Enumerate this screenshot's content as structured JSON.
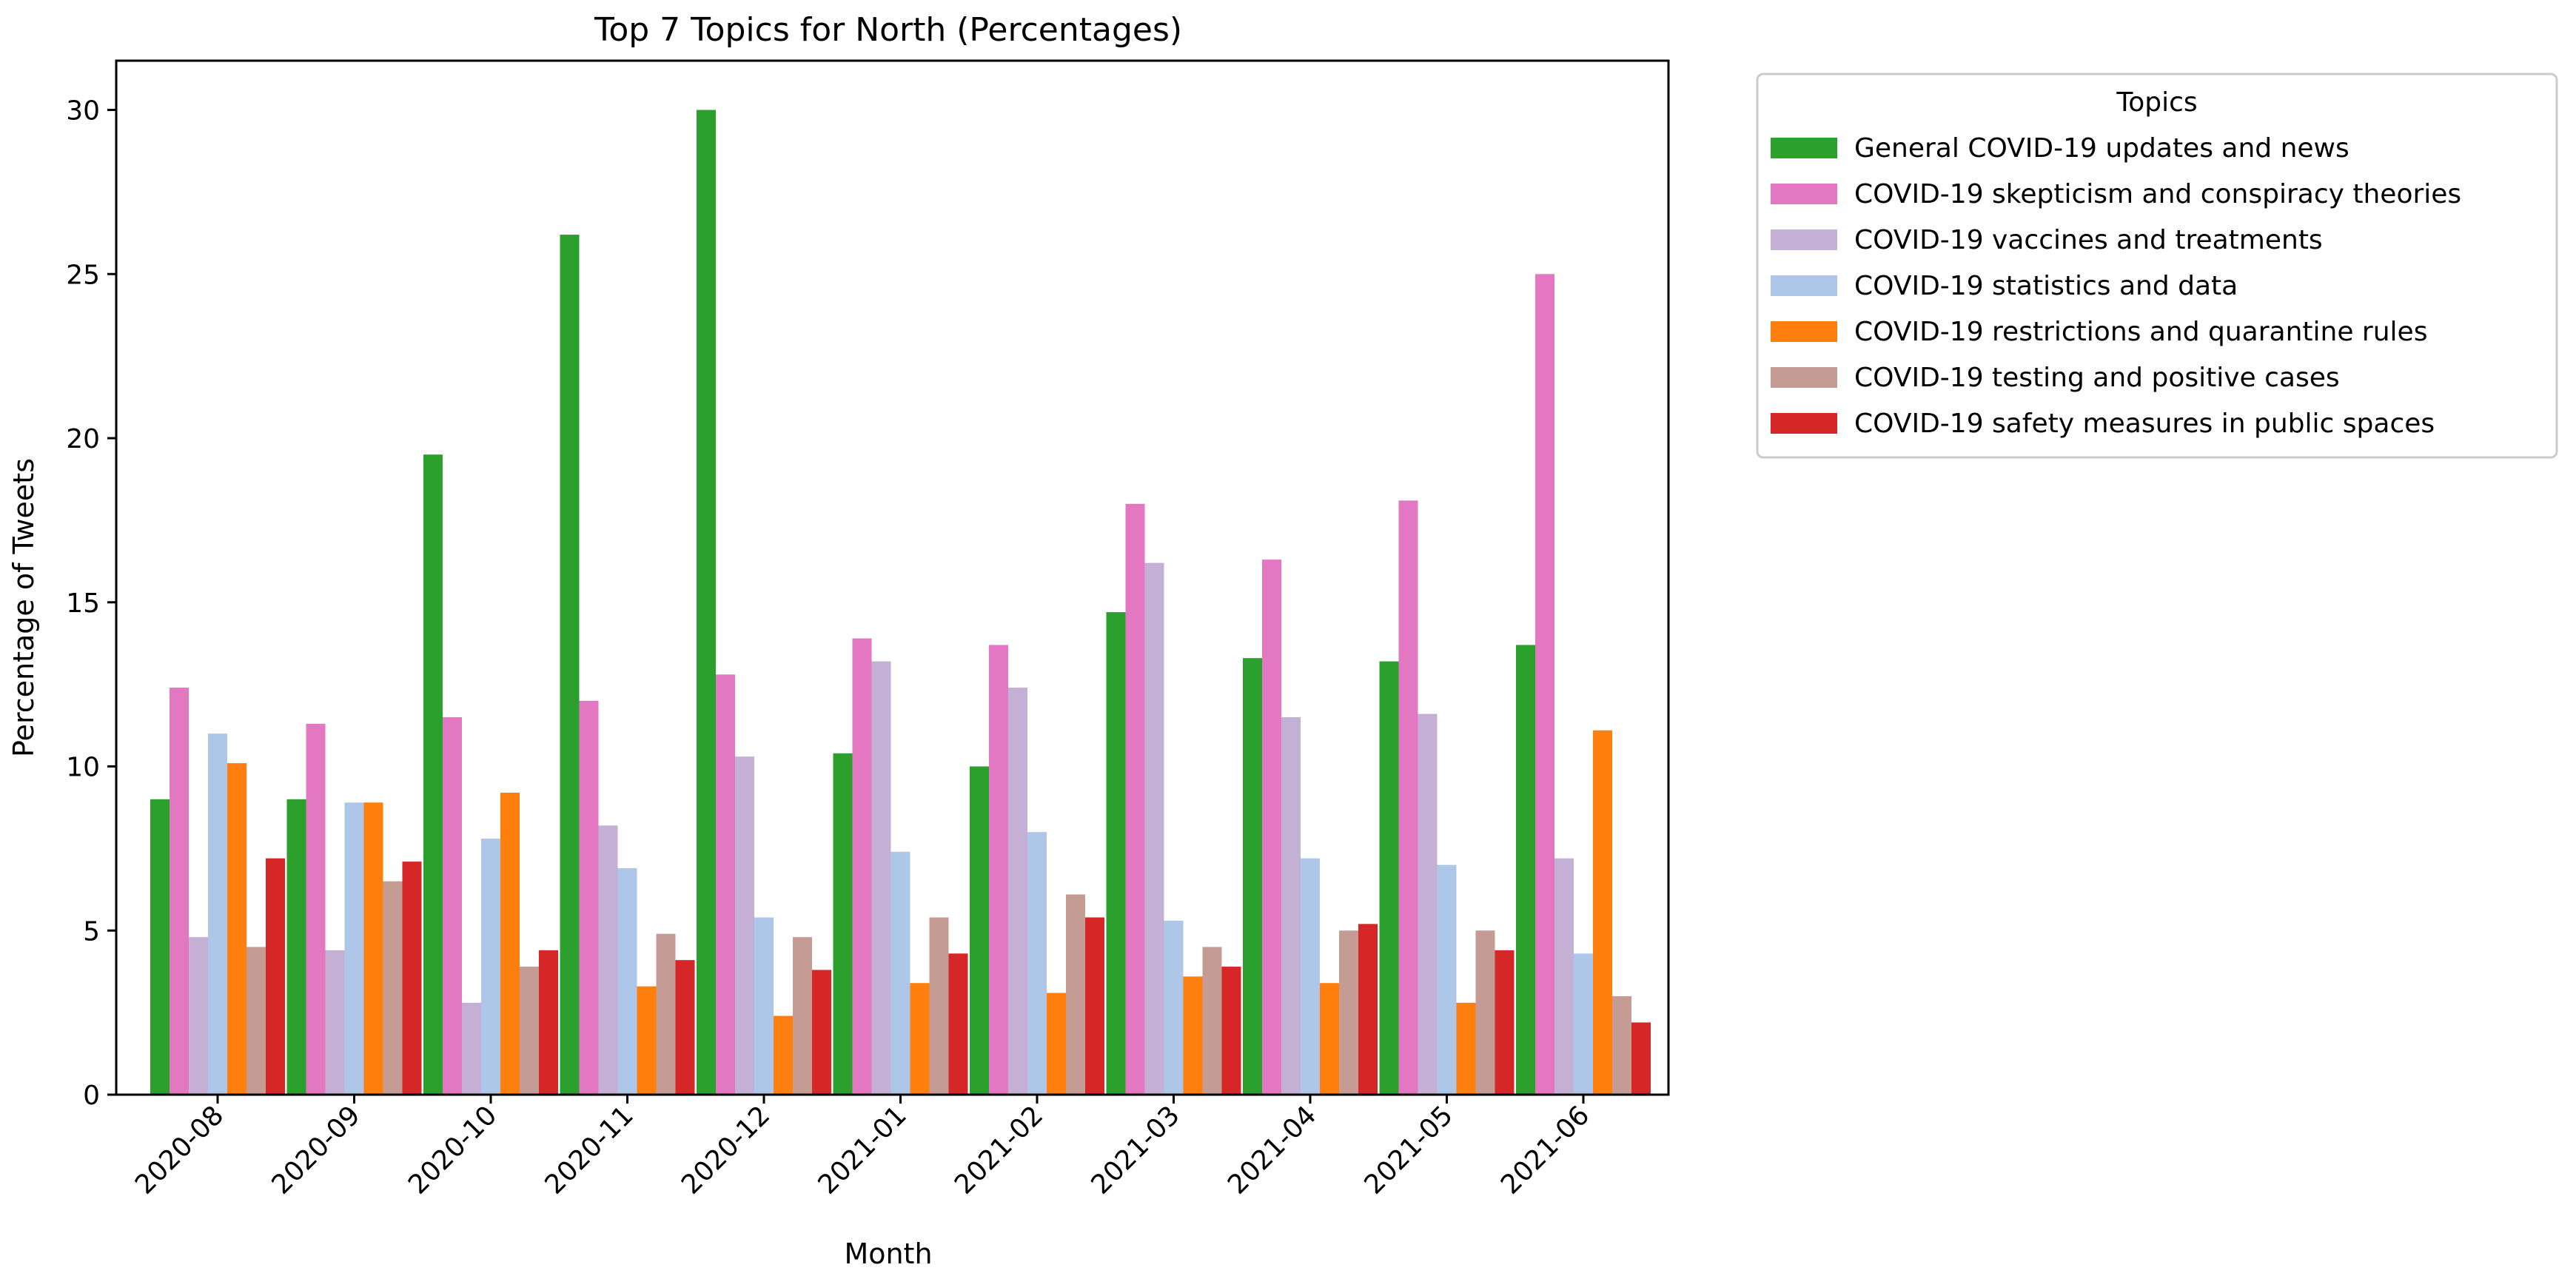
{
  "chart_data": {
    "type": "bar",
    "title": "Top 7 Topics for North (Percentages)",
    "xlabel": "Month",
    "ylabel": "Percentage of Tweets",
    "ylim": [
      0,
      31.5
    ],
    "yticks": [
      0,
      5,
      10,
      15,
      20,
      25,
      30
    ],
    "grid": false,
    "legend": {
      "title": "Topics",
      "placement": "outside-upper-right"
    },
    "categories": [
      "2020-08",
      "2020-09",
      "2020-10",
      "2020-11",
      "2020-12",
      "2021-01",
      "2021-02",
      "2021-03",
      "2021-04",
      "2021-05",
      "2021-06"
    ],
    "series": [
      {
        "name": "General COVID-19 updates and news",
        "color": "#2ca02c",
        "values": [
          9.0,
          9.0,
          19.5,
          26.2,
          30.0,
          10.4,
          10.0,
          14.7,
          13.3,
          13.2,
          13.7
        ]
      },
      {
        "name": "COVID-19 skepticism and conspiracy theories",
        "color": "#e377c2",
        "values": [
          12.4,
          11.3,
          11.5,
          12.0,
          12.8,
          13.9,
          13.7,
          18.0,
          16.3,
          18.1,
          25.0
        ]
      },
      {
        "name": "COVID-19 vaccines and treatments",
        "color": "#c5b0d5",
        "values": [
          4.8,
          4.4,
          2.8,
          8.2,
          10.3,
          13.2,
          12.4,
          16.2,
          11.5,
          11.6,
          7.2
        ]
      },
      {
        "name": "COVID-19 statistics and data",
        "color": "#aec7e8",
        "values": [
          11.0,
          8.9,
          7.8,
          6.9,
          5.4,
          7.4,
          8.0,
          5.3,
          7.2,
          7.0,
          4.3
        ]
      },
      {
        "name": "COVID-19 restrictions and quarantine rules",
        "color": "#ff7f0e",
        "values": [
          10.1,
          8.9,
          9.2,
          3.3,
          2.4,
          3.4,
          3.1,
          3.6,
          3.4,
          2.8,
          11.1
        ]
      },
      {
        "name": "COVID-19 testing and positive cases",
        "color": "#c49c94",
        "values": [
          4.5,
          6.5,
          3.9,
          4.9,
          4.8,
          5.4,
          6.1,
          4.5,
          5.0,
          5.0,
          3.0
        ]
      },
      {
        "name": "COVID-19 safety measures in public spaces",
        "color": "#d62728",
        "values": [
          7.2,
          7.1,
          4.4,
          4.1,
          3.8,
          4.3,
          5.4,
          3.9,
          5.2,
          4.4,
          2.2
        ]
      }
    ]
  }
}
